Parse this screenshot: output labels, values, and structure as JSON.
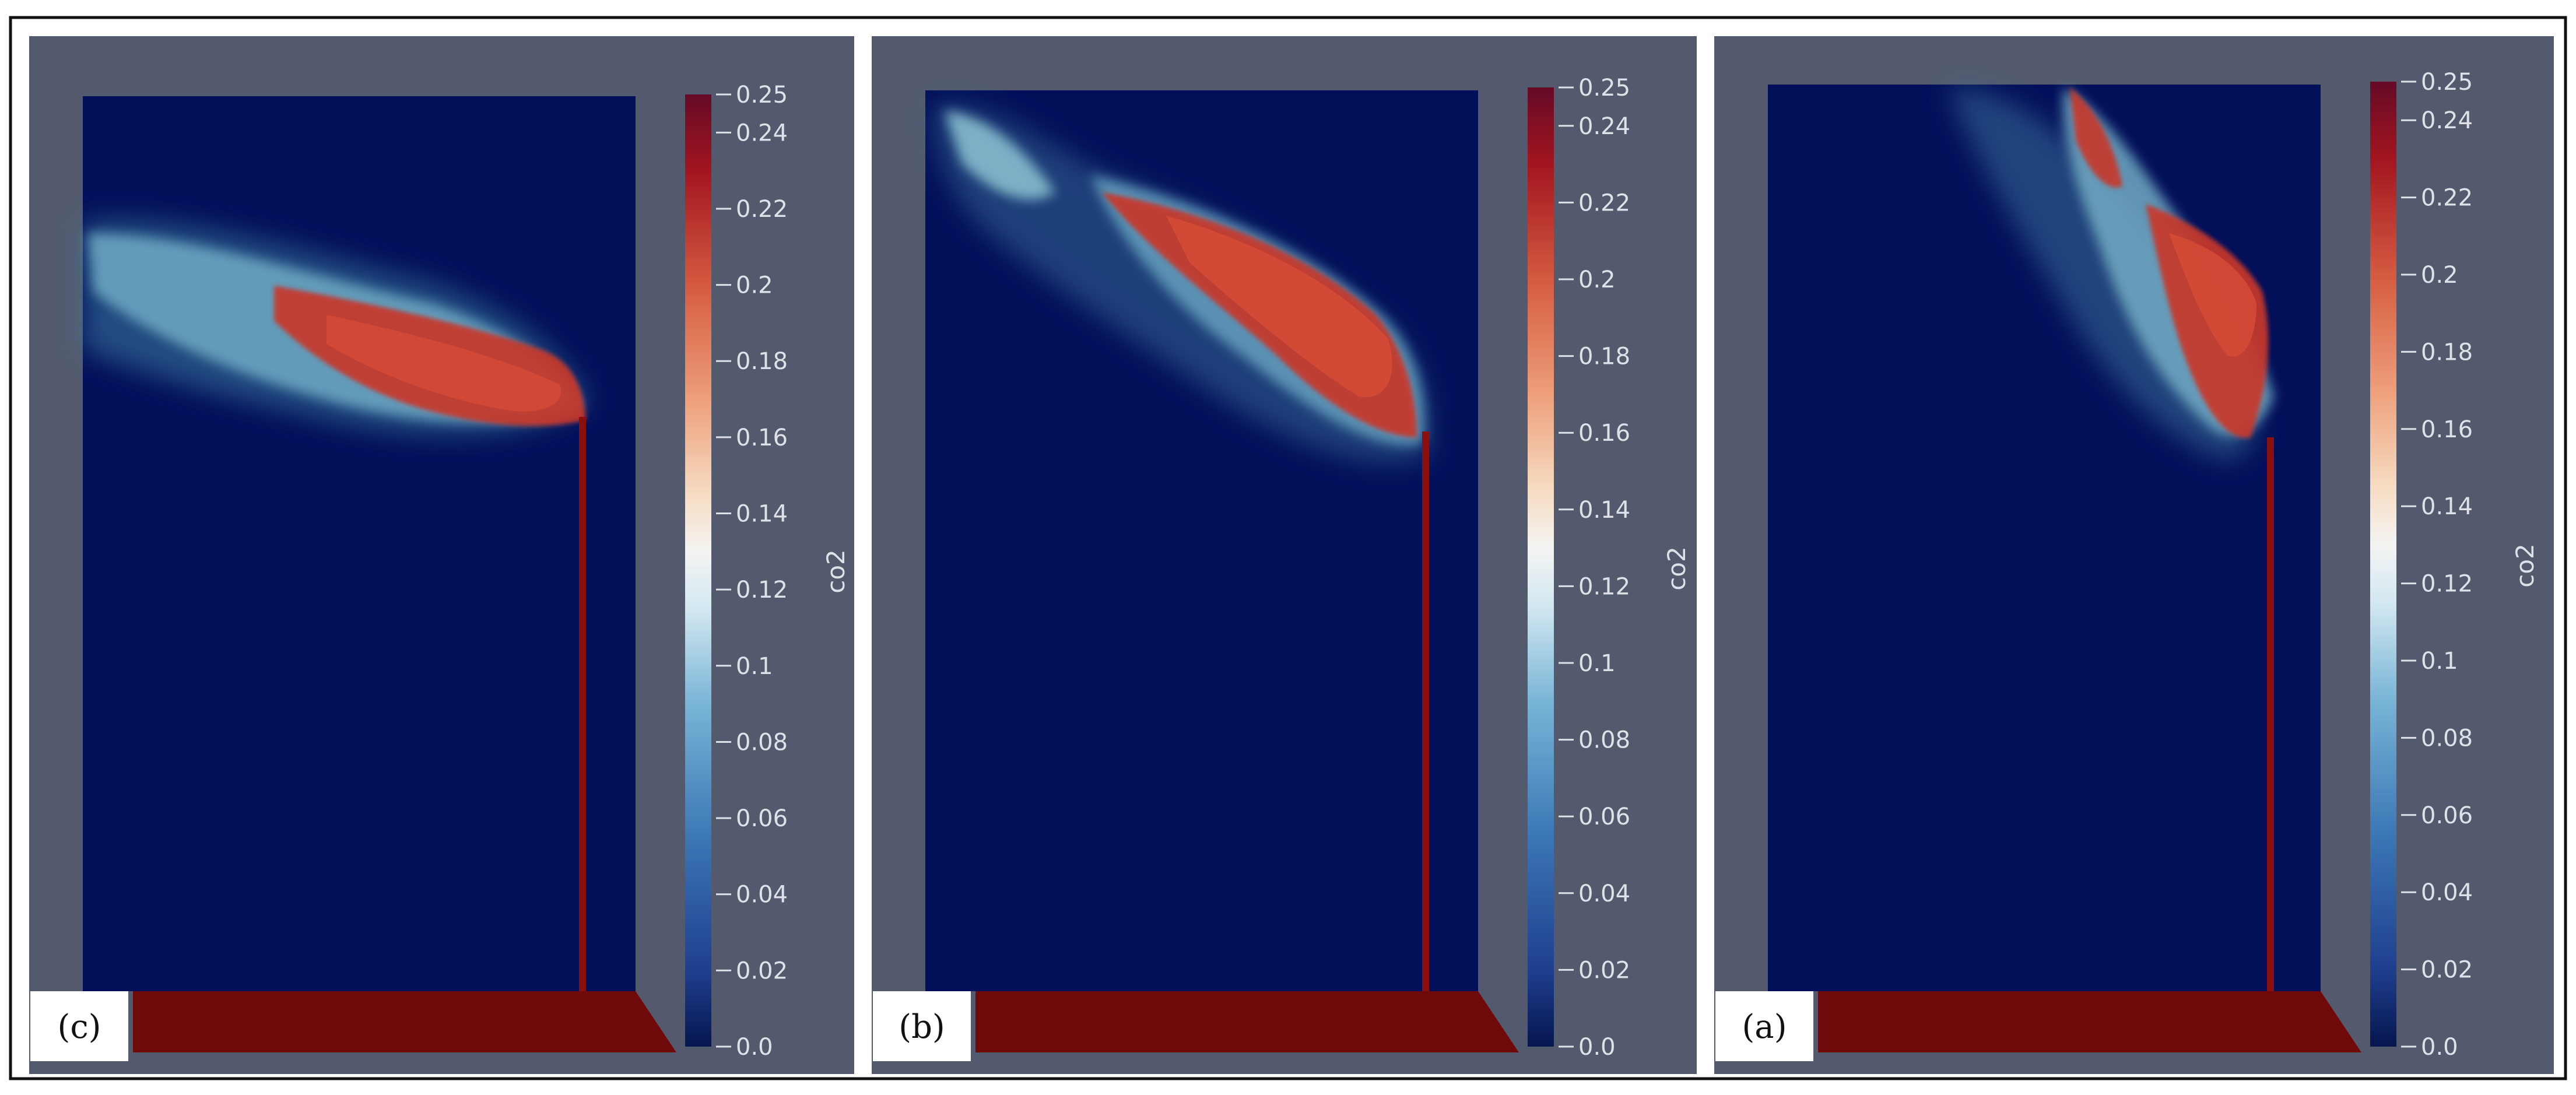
{
  "panels": [
    {
      "tag": "(c)",
      "colorbar": {
        "title": "co2",
        "ticks": [
          "0.25",
          "0.24",
          "0.22",
          "0.2",
          "0.18",
          "0.16",
          "0.14",
          "0.12",
          "0.1",
          "0.08",
          "0.06",
          "0.04",
          "0.02",
          "0.0"
        ]
      }
    },
    {
      "tag": "(b)",
      "colorbar": {
        "title": "co2",
        "ticks": [
          "0.25",
          "0.24",
          "0.22",
          "0.2",
          "0.18",
          "0.16",
          "0.14",
          "0.12",
          "0.1",
          "0.08",
          "0.06",
          "0.04",
          "0.02",
          "0.0"
        ]
      }
    },
    {
      "tag": "(a)",
      "colorbar": {
        "title": "co2",
        "ticks": [
          "0.25",
          "0.24",
          "0.22",
          "0.2",
          "0.18",
          "0.16",
          "0.14",
          "0.12",
          "0.1",
          "0.08",
          "0.06",
          "0.04",
          "0.02",
          "0.0"
        ]
      }
    }
  ],
  "colors": {
    "background": "#535a6e",
    "domain": "#02105a",
    "floor": "#6e0a0a",
    "stack": "#8a1010",
    "plume_high": "#c8382c",
    "plume_low": "#5fa6c2",
    "frame": "#111111"
  }
}
